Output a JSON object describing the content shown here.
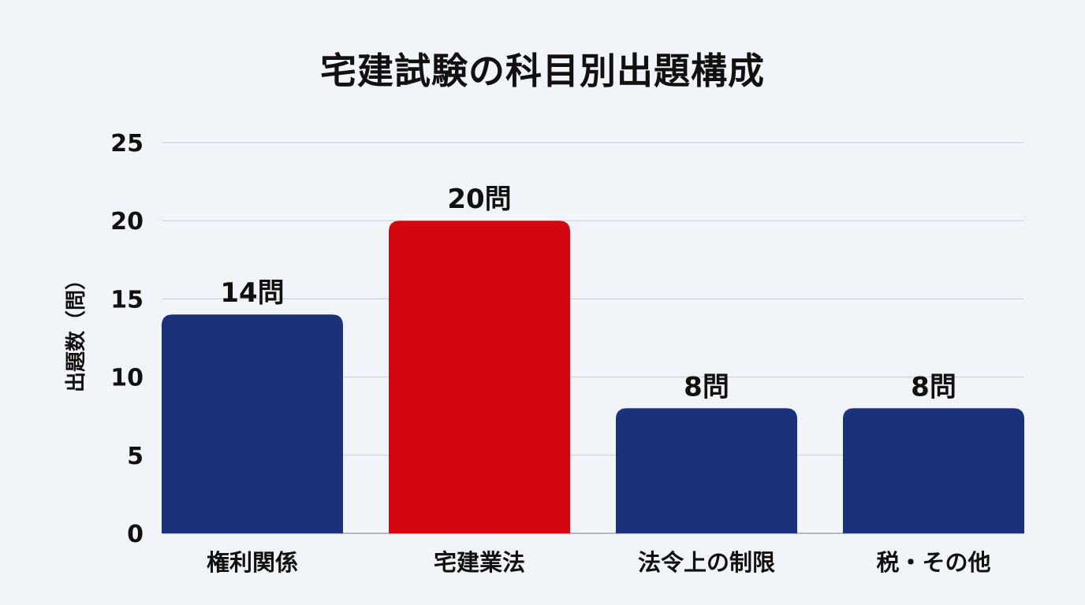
{
  "chart_data": {
    "type": "bar",
    "title": "宅建試験の科目別出題構成",
    "xlabel": "",
    "ylabel": "出題数（問）",
    "ylim": [
      0,
      25
    ],
    "yticks": [
      0,
      5,
      10,
      15,
      20,
      25
    ],
    "grid": true,
    "categories": [
      "権利関係",
      "宅建業法",
      "法令上の制限",
      "税・その他"
    ],
    "values": [
      14,
      20,
      8,
      8
    ],
    "data_labels": [
      "14問",
      "20問",
      "8問",
      "8問"
    ],
    "colors": [
      "#1b327a",
      "#d40612",
      "#1b327a",
      "#1b327a"
    ],
    "highlight_color": "#d40612",
    "base_color": "#1b327a"
  }
}
